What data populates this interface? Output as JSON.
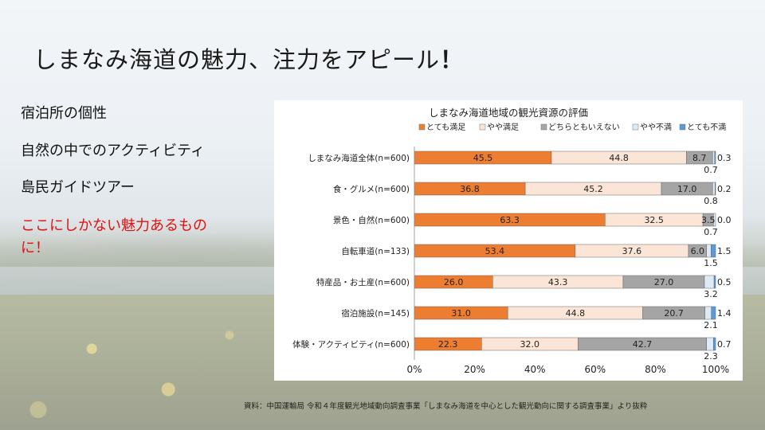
{
  "slide": {
    "title": "しまなみ海道の魅力、注力をアピール",
    "title_mark": "！"
  },
  "bullets": [
    "宿泊所の個性",
    "自然の中でのアクティビティ",
    "島民ガイドツアー"
  ],
  "highlight": {
    "line1": "ここにしかない魅力あるもの",
    "line2": "に！"
  },
  "source": "資料：中国運輸局 令和４年度観光地域動向調査事業「しまなみ海道を中心とした観光動向に関する調査事業」より抜粋",
  "colors": {
    "very_satisfied": "#ed7d31",
    "satisfied": "#fbe5d6",
    "neutral": "#a5a5a5",
    "dissatisfied": "#deebf7",
    "very_dissatisfied": "#5b9bd5"
  },
  "chart_data": {
    "type": "bar",
    "orientation": "horizontal",
    "stacked": "percent",
    "title": "しまなみ海道地域の観光資源の評価",
    "categories": [
      "しまなみ海道全体(n=600)",
      "食・グルメ(n=600)",
      "景色・自然(n=600)",
      "自転車道(n=133)",
      "特産品・お土産(n=600)",
      "宿泊施設(n=145)",
      "体験・アクティビティ(n=600)"
    ],
    "series": [
      {
        "name": "とても満足",
        "color": "#ed7d31",
        "values": [
          45.5,
          36.8,
          63.3,
          53.4,
          26.0,
          31.0,
          22.3
        ]
      },
      {
        "name": "やや満足",
        "color": "#fbe5d6",
        "values": [
          44.8,
          45.2,
          32.5,
          37.6,
          43.3,
          44.8,
          32.0
        ]
      },
      {
        "name": "どちらともいえない",
        "color": "#a5a5a5",
        "values": [
          8.7,
          17.0,
          3.5,
          6.0,
          27.0,
          20.7,
          42.7
        ]
      },
      {
        "name": "やや不満",
        "color": "#deebf7",
        "values": [
          0.7,
          0.8,
          0.7,
          1.5,
          3.2,
          2.1,
          2.3
        ]
      },
      {
        "name": "とても不満",
        "color": "#5b9bd5",
        "values": [
          0.3,
          0.2,
          0.0,
          1.5,
          0.5,
          1.4,
          0.7
        ]
      }
    ],
    "xlim": [
      0,
      100
    ],
    "xticks": [
      "0%",
      "20%",
      "40%",
      "60%",
      "80%",
      "100%"
    ],
    "legend": "top",
    "grid": false
  }
}
